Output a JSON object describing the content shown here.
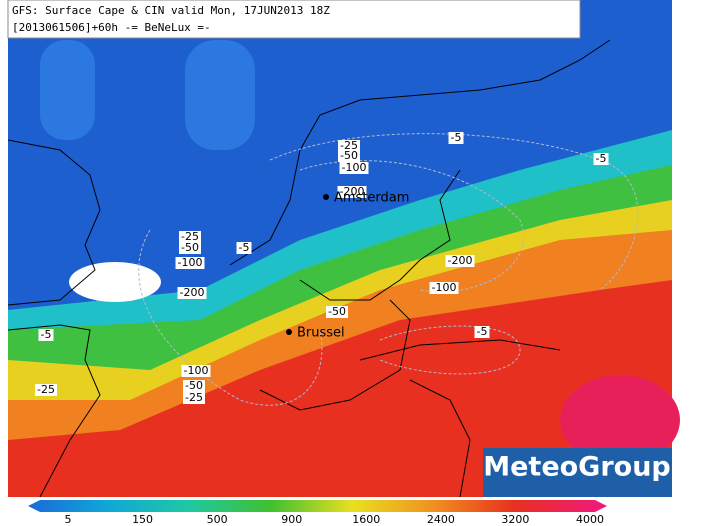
{
  "header": {
    "line1": "GFS: Surface Cape & CIN valid Mon, 17JUN2013 18Z",
    "line2": "[2013061506]+60h -= BeNeLux =-"
  },
  "cities": [
    {
      "label": "Amsterdam"
    },
    {
      "label": "Brussel"
    }
  ],
  "contour_labels": [
    "-25",
    "-50",
    "-100",
    "-200",
    "-5",
    "-5",
    "-25",
    "-50",
    "-100",
    "-5",
    "-200",
    "-200",
    "-100",
    "-50",
    "-5",
    "-5",
    "-25",
    "-100",
    "-50",
    "-25"
  ],
  "colorbar": {
    "ticks": [
      5,
      150,
      500,
      900,
      1600,
      2400,
      3200,
      4000
    ]
  },
  "logo": "MeteoGroup"
}
